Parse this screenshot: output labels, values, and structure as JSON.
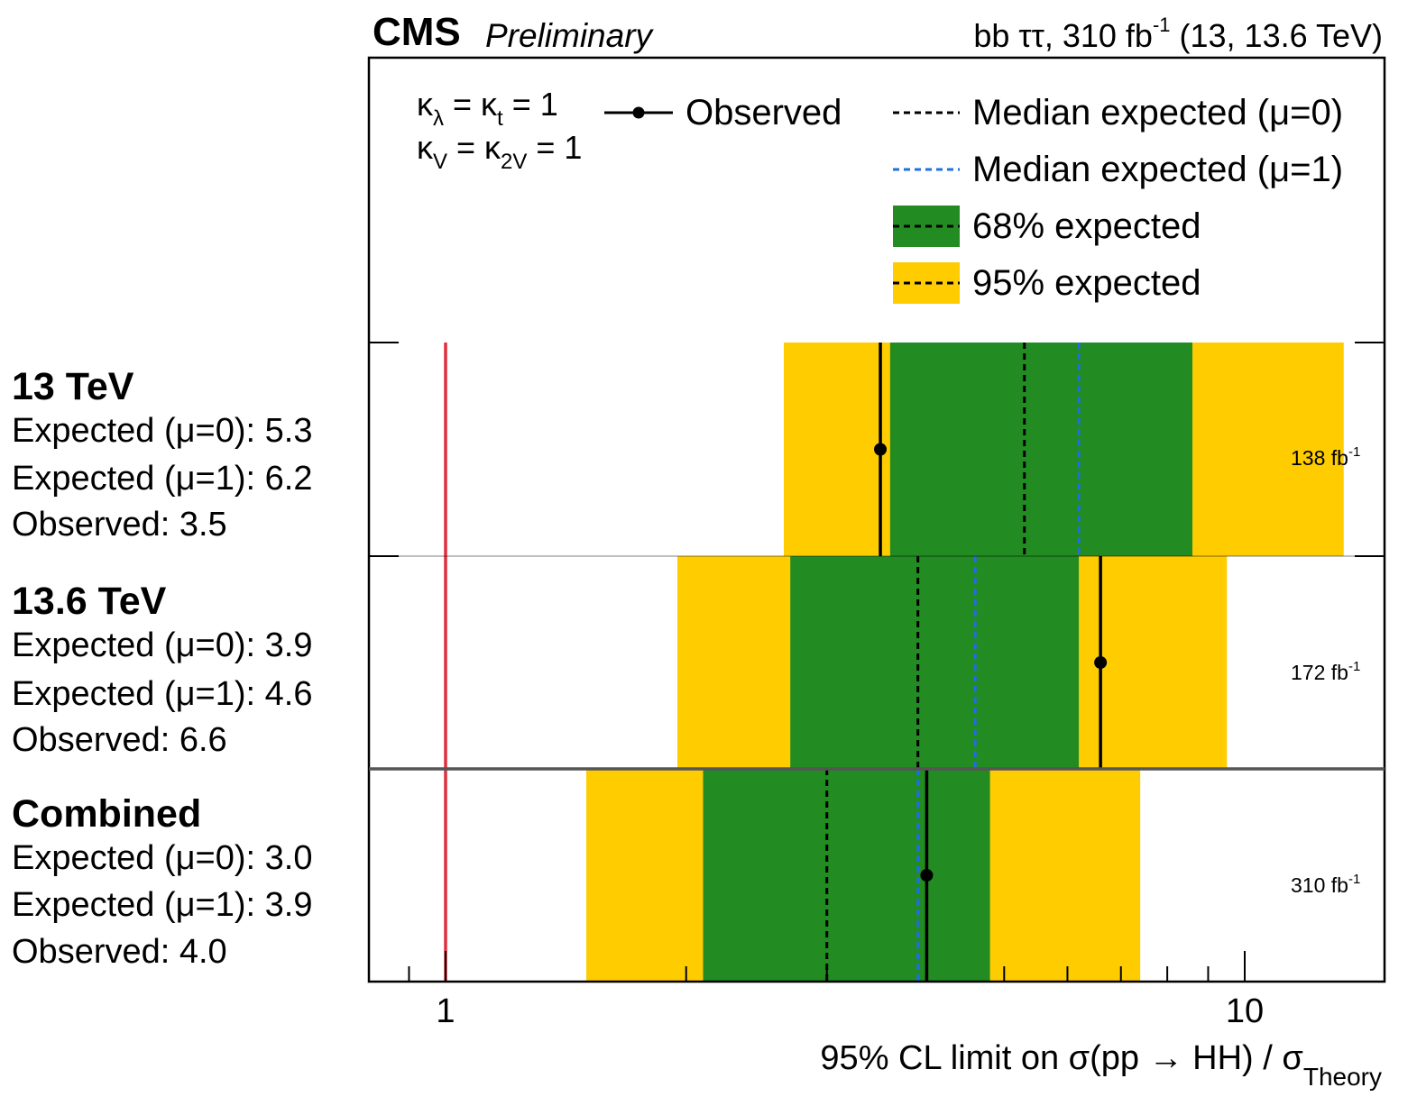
{
  "header": {
    "experiment": "CMS",
    "status": "Preliminary",
    "lumi_prefix": "bb ττ, 310 fb",
    "lumi_exp": "-1",
    "lumi_suffix": " (13, 13.6 TeV)"
  },
  "couplings": {
    "line1": {
      "k1": "κ",
      "s1": "λ",
      "mid": " = κ",
      "s2": "t",
      "end": " = 1"
    },
    "line2": {
      "k1": "κ",
      "s1": "V",
      "mid": " = κ",
      "s2": "2V",
      "end": " = 1"
    }
  },
  "legend": {
    "observed": "Observed",
    "median0": "Median expected (μ=0)",
    "median1": "Median expected (μ=1)",
    "band68": "68% expected",
    "band95": "95% expected"
  },
  "colors": {
    "band68": "#228b22",
    "band95": "#ffcc00",
    "median1": "#1e6fe0",
    "reference": "#e0303f",
    "observed": "#000000"
  },
  "chart_data": {
    "type": "limit",
    "x_scale": "log",
    "xlim": [
      0.85,
      13
    ],
    "xlabel_main": "95% CL limit on σ(pp → HH) / σ",
    "xlabel_sub": "Theory",
    "xticks": [
      "1",
      "10"
    ],
    "reference_line": 1,
    "rows": [
      {
        "title": "13 TeV",
        "lumi": "138 fb",
        "lumi_exp": "-1",
        "lines": [
          "Expected (μ=0): 5.3",
          "Expected (μ=1): 6.2",
          "Observed: 3.5"
        ],
        "expected_mu0": 5.3,
        "expected_mu1": 6.2,
        "observed": 3.5,
        "band68": [
          3.6,
          8.6
        ],
        "band95": [
          2.65,
          13.3
        ]
      },
      {
        "title": "13.6 TeV",
        "lumi": "172 fb",
        "lumi_exp": "-1",
        "lines": [
          "Expected (μ=0): 3.9",
          "Expected (μ=1): 4.6",
          "Observed: 6.6"
        ],
        "expected_mu0": 3.9,
        "expected_mu1": 4.6,
        "observed": 6.6,
        "band68": [
          2.7,
          6.2
        ],
        "band95": [
          1.95,
          9.5
        ]
      },
      {
        "title": "Combined",
        "lumi": "310 fb",
        "lumi_exp": "-1",
        "lines": [
          "Expected (μ=0): 3.0",
          "Expected (μ=1): 3.9",
          "Observed: 4.0"
        ],
        "expected_mu0": 3.0,
        "expected_mu1": 3.9,
        "observed": 4.0,
        "band68": [
          2.1,
          4.8
        ],
        "band95": [
          1.5,
          7.4
        ]
      }
    ]
  }
}
